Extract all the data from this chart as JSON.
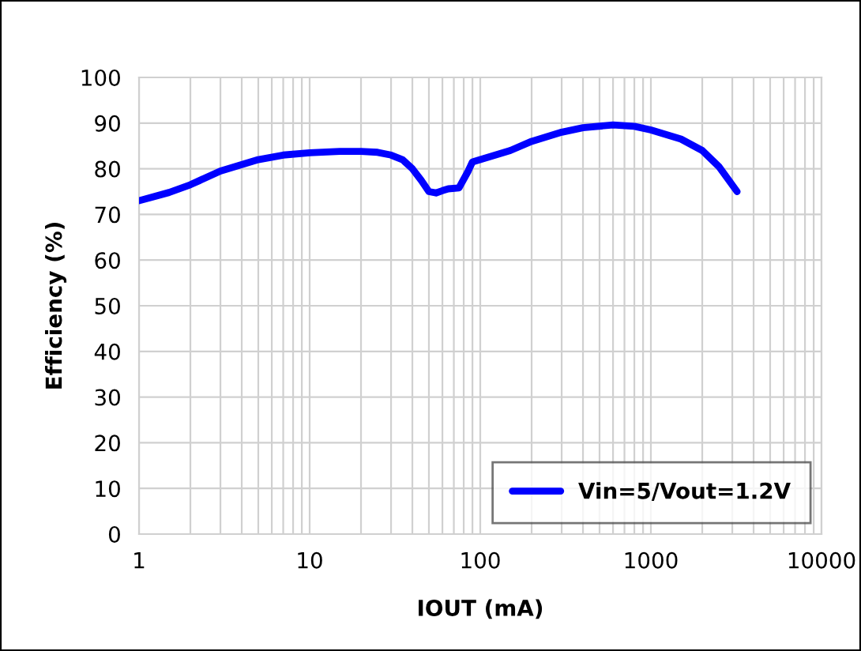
{
  "chart_data": {
    "type": "line",
    "xlabel": "IOUT (mA)",
    "ylabel": "Efficiency (%)",
    "log": "x",
    "xlim": [
      1,
      10000
    ],
    "xticks": [
      1,
      10,
      100,
      1000,
      10000
    ],
    "ylim": [
      0,
      100
    ],
    "yticks": [
      0,
      10,
      20,
      30,
      40,
      50,
      60,
      70,
      80,
      90,
      100
    ],
    "grid": true,
    "legend": "bottom right",
    "line_style": "solid",
    "marker": "none",
    "series": [
      {
        "name": "Vin=5/Vout=1.2V",
        "color": "#0000ff",
        "x": [
          1,
          1.5,
          2,
          3,
          5,
          7,
          10,
          15,
          20,
          25,
          30,
          35,
          40,
          45,
          50,
          55,
          60,
          65,
          75,
          85,
          90,
          100,
          150,
          200,
          300,
          400,
          600,
          800,
          1000,
          1500,
          2000,
          2500,
          3200
        ],
        "values": [
          73,
          74.8,
          76.5,
          79.5,
          82,
          83,
          83.5,
          83.8,
          83.8,
          83.6,
          83,
          82,
          80,
          77.5,
          75,
          74.7,
          75.2,
          75.6,
          75.8,
          79.5,
          81.5,
          82,
          84,
          86,
          88,
          89,
          89.6,
          89.3,
          88.5,
          86.5,
          84,
          80.5,
          75
        ]
      }
    ]
  }
}
